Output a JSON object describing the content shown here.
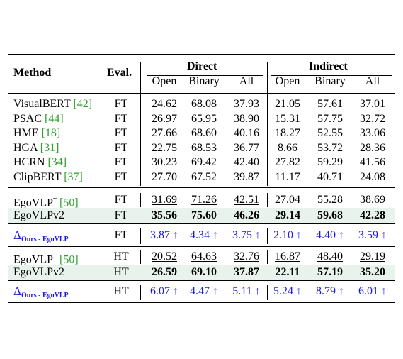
{
  "header": {
    "method": "Method",
    "eval": "Eval.",
    "direct": "Direct",
    "indirect": "Indirect",
    "cols": [
      "Open",
      "Binary",
      "All",
      "Open",
      "Binary",
      "All"
    ]
  },
  "group1": [
    {
      "method": "VisualBERT",
      "cite": "[42]",
      "eval": "FT",
      "vals": [
        "24.62",
        "68.08",
        "37.93",
        "21.05",
        "57.61",
        "37.01"
      ],
      "u": []
    },
    {
      "method": "PSAC",
      "cite": "[44]",
      "eval": "FT",
      "vals": [
        "26.97",
        "65.95",
        "38.90",
        "15.31",
        "57.75",
        "32.72"
      ],
      "u": []
    },
    {
      "method": "HME",
      "cite": "[18]",
      "eval": "FT",
      "vals": [
        "27.66",
        "68.60",
        "40.16",
        "18.27",
        "52.55",
        "33.06"
      ],
      "u": []
    },
    {
      "method": "HGA",
      "cite": "[31]",
      "eval": "FT",
      "vals": [
        "22.75",
        "68.53",
        "36.77",
        "8.66",
        "53.72",
        "28.36"
      ],
      "u": []
    },
    {
      "method": "HCRN",
      "cite": "[34]",
      "eval": "FT",
      "vals": [
        "30.23",
        "69.42",
        "42.40",
        "27.82",
        "59.29",
        "41.56"
      ],
      "u": [
        3,
        4,
        5
      ]
    },
    {
      "method": "ClipBERT",
      "cite": "[37]",
      "eval": "FT",
      "vals": [
        "27.70",
        "67.52",
        "39.87",
        "11.17",
        "40.71",
        "24.08"
      ],
      "u": []
    }
  ],
  "group2": [
    {
      "method": "EgoVLP",
      "dagger": "†",
      "cite": "[50]",
      "eval": "FT",
      "vals": [
        "31.69",
        "71.26",
        "42.51",
        "27.04",
        "55.28",
        "38.69"
      ],
      "u": [
        0,
        1,
        2
      ],
      "bold": false
    },
    {
      "method": "EgoVLPv2",
      "dagger": "",
      "cite": "",
      "eval": "FT",
      "vals": [
        "35.56",
        "75.60",
        "46.26",
        "29.14",
        "59.68",
        "42.28"
      ],
      "u": [],
      "bold": true
    }
  ],
  "delta1": {
    "symbol": "Δ",
    "sub": "Ours - EgoVLP",
    "eval": "FT",
    "vals": [
      "3.87 ↑",
      "4.34 ↑",
      "3.75 ↑",
      "2.10 ↑",
      "4.40 ↑",
      "3.59 ↑"
    ]
  },
  "group3": [
    {
      "method": "EgoVLP",
      "dagger": "†",
      "cite": "[50]",
      "eval": "HT",
      "vals": [
        "20.52",
        "64.63",
        "32.76",
        "16.87",
        "48.40",
        "29.19"
      ],
      "u": [
        0,
        1,
        2,
        3,
        4,
        5
      ],
      "bold": false
    },
    {
      "method": "EgoVLPv2",
      "dagger": "",
      "cite": "",
      "eval": "HT",
      "vals": [
        "26.59",
        "69.10",
        "37.87",
        "22.11",
        "57.19",
        "35.20"
      ],
      "u": [],
      "bold": true
    }
  ],
  "delta2": {
    "symbol": "Δ",
    "sub": "Ours - EgoVLP",
    "eval": "HT",
    "vals": [
      "6.07 ↑",
      "4.47 ↑",
      "5.11 ↑",
      "5.24 ↑",
      "8.79 ↑",
      "6.01 ↑"
    ]
  }
}
